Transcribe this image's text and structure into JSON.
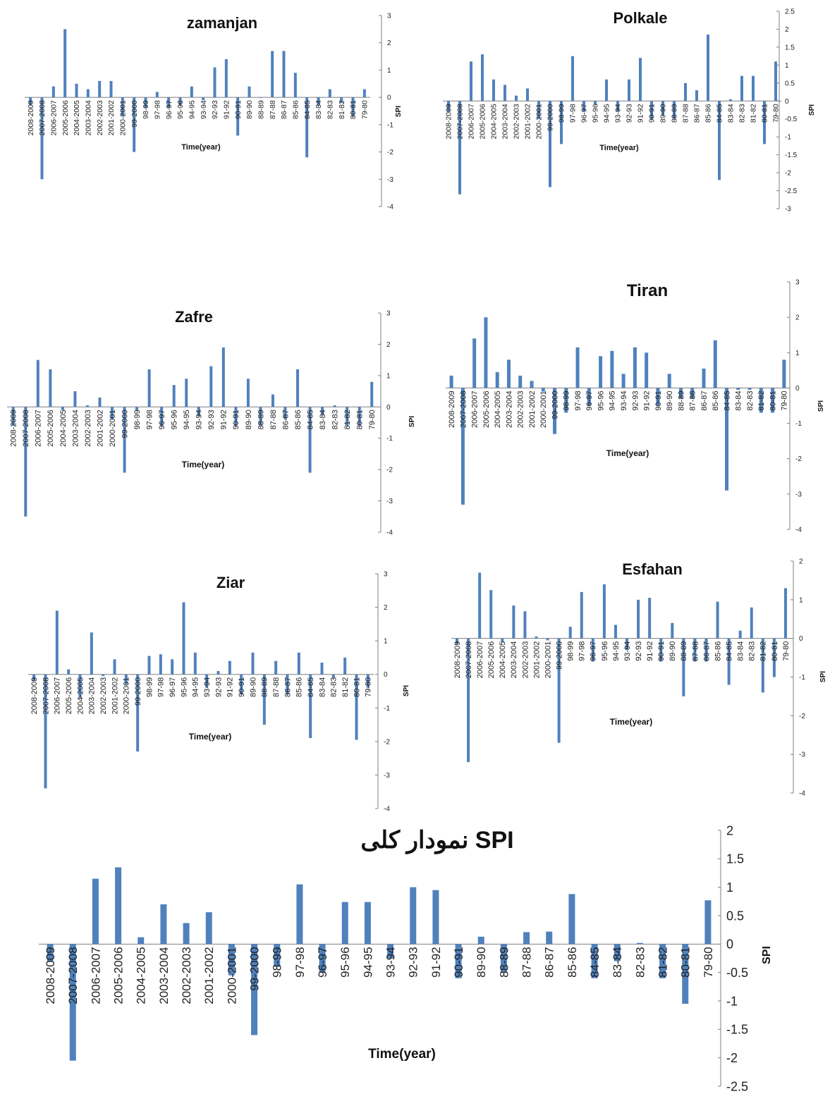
{
  "colors": {
    "bar": "#4F81BD",
    "axis": "#7f7f7f",
    "text": "#222222"
  },
  "chart_data": [
    {
      "type": "bar",
      "title": "zamanjan",
      "xlabel": "Time(year)",
      "ylabel": "SPI",
      "ylim": [
        -4,
        3
      ],
      "yticks": [
        "3",
        "2",
        "1",
        "0",
        "-1",
        "-2",
        "-3",
        "-4"
      ],
      "categories": [
        "2008-2009",
        "2007-2008",
        "2006-2007",
        "2005-2006",
        "2004-2005",
        "2003-2004",
        "2002-2003",
        "2001-2002",
        "2000-2001",
        "99-2000",
        "98-99",
        "97-98",
        "96-97",
        "95-96",
        "94-95",
        "93-94",
        "92-93",
        "91-92",
        "90-91",
        "89-90",
        "88-89",
        "87-88",
        "86-87",
        "85-86",
        "84-85",
        "83-84",
        "82-83",
        "81-82",
        "80-81",
        "79-80"
      ],
      "values": [
        -0.3,
        -3.0,
        0.4,
        2.5,
        0.5,
        0.3,
        0.6,
        0.6,
        -0.7,
        -2.0,
        -0.4,
        0.2,
        -0.4,
        -0.3,
        0.4,
        -0.1,
        1.1,
        1.4,
        -1.4,
        0.4,
        0.0,
        1.7,
        1.7,
        0.9,
        -2.2,
        -0.3,
        0.3,
        -0.2,
        -0.7,
        0.3
      ]
    },
    {
      "type": "bar",
      "title": "Polkale",
      "xlabel": "Time(year)",
      "ylabel": "SPI",
      "ylim": [
        -3,
        2.5
      ],
      "yticks": [
        "2.5",
        "2",
        "1.5",
        "1",
        "0.5",
        "0",
        "-0.5",
        "-1",
        "-1.5",
        "-2",
        "-2.5",
        "-3"
      ],
      "categories": [
        "2008-2009",
        "2007-2008",
        "2006-2007",
        "2005-2006",
        "2004-2005",
        "2003-2004",
        "2002-2003",
        "2001-2002",
        "2000-2001",
        "99-2000",
        "98-99",
        "97-98",
        "96-97",
        "95-96",
        "94-95",
        "93-94",
        "92-93",
        "91-92",
        "90-91",
        "89-90",
        "88-89",
        "87-88",
        "86-87",
        "85-86",
        "84-85",
        "83-84",
        "82-83",
        "81-82",
        "80-81",
        "79-80"
      ],
      "values": [
        -0.3,
        -2.6,
        1.1,
        1.3,
        0.6,
        0.45,
        0.15,
        0.35,
        -0.5,
        -2.4,
        -1.2,
        1.25,
        -0.3,
        -0.1,
        0.6,
        -0.3,
        0.6,
        1.2,
        -0.5,
        -0.4,
        -0.5,
        0.5,
        0.3,
        1.85,
        -2.2,
        0.05,
        0.7,
        0.7,
        -1.2,
        1.1
      ]
    },
    {
      "type": "bar",
      "title": "Zafre",
      "xlabel": "Time(year)",
      "ylabel": "SPI",
      "ylim": [
        -4,
        3
      ],
      "yticks": [
        "3",
        "2",
        "1",
        "0",
        "-1",
        "-2",
        "-3",
        "-4"
      ],
      "categories": [
        "2008-2009",
        "2007-2008",
        "2006-2007",
        "2005-2006",
        "2004-2005",
        "2003-2004",
        "2002-2003",
        "2001-2002",
        "2000-2001",
        "99-2000",
        "98-99",
        "97-98",
        "96-97",
        "95-96",
        "94-95",
        "93-94",
        "92-93",
        "91-92",
        "90-91",
        "89-90",
        "88-89",
        "87-88",
        "86-87",
        "85-86",
        "84-85",
        "83-84",
        "82-83",
        "81-82",
        "80-81",
        "79-80"
      ],
      "values": [
        -0.6,
        -3.5,
        1.5,
        1.2,
        -0.1,
        0.5,
        0.05,
        0.3,
        -0.4,
        -2.1,
        -0.1,
        1.2,
        -0.6,
        0.7,
        0.9,
        -0.3,
        1.3,
        1.9,
        -0.6,
        0.9,
        -0.6,
        0.4,
        -0.4,
        1.2,
        -2.1,
        -0.25,
        0.05,
        -0.6,
        -0.6,
        0.8
      ]
    },
    {
      "type": "bar",
      "title": "Tiran",
      "xlabel": "Time(year)",
      "ylabel": "SPI",
      "ylim": [
        -4,
        3
      ],
      "yticks": [
        "3",
        "2",
        "1",
        "0",
        "-1",
        "-2",
        "-3",
        "-4"
      ],
      "categories": [
        "2008-2009",
        "2007-2008",
        "2006-2007",
        "2005-2006",
        "2004-2005",
        "2003-2004",
        "2002-2003",
        "2001-2002",
        "2000-2001",
        "99-2000",
        "98-99",
        "97-98",
        "96-97",
        "95-96",
        "94-95",
        "93-94",
        "92-93",
        "91-92",
        "90-91",
        "89-90",
        "88-89",
        "87-88",
        "86-87",
        "85-86",
        "84-85",
        "83-84",
        "82-83",
        "81-82",
        "80-81",
        "79-80"
      ],
      "values": [
        0.35,
        -3.3,
        1.4,
        2.0,
        0.45,
        0.8,
        0.35,
        0.2,
        -0.1,
        -1.3,
        -0.7,
        1.15,
        -0.5,
        0.9,
        1.05,
        0.4,
        1.15,
        1.0,
        -0.5,
        0.4,
        -0.3,
        -0.3,
        0.55,
        1.35,
        -2.9,
        -0.05,
        -0.05,
        -0.7,
        -0.7,
        0.8
      ]
    },
    {
      "type": "bar",
      "title": "Ziar",
      "xlabel": "Time(year)",
      "ylabel": "SPI",
      "ylim": [
        -4,
        3
      ],
      "yticks": [
        "3",
        "2",
        "1",
        "0",
        "-1",
        "-2",
        "-3",
        "-4"
      ],
      "categories": [
        "2008-2009",
        "2007-2008",
        "2006-2007",
        "2005-2006",
        "2004-2005",
        "2003-2004",
        "2002-2003",
        "2001-2002",
        "2000-2001",
        "99-2000",
        "98-99",
        "97-98",
        "96-97",
        "95-96",
        "94-95",
        "93-94",
        "92-93",
        "91-92",
        "90-91",
        "89-90",
        "88-89",
        "87-88",
        "86-87",
        "85-86",
        "84-85",
        "83-84",
        "82-83",
        "81-82",
        "80-81",
        "79-80"
      ],
      "values": [
        -0.2,
        -3.4,
        1.9,
        0.15,
        -0.7,
        1.25,
        -0.05,
        0.45,
        -0.3,
        -2.3,
        0.55,
        0.6,
        0.45,
        2.15,
        0.65,
        -0.4,
        0.1,
        0.4,
        -0.6,
        0.65,
        -1.5,
        0.4,
        -0.6,
        0.65,
        -1.9,
        0.35,
        -0.1,
        0.5,
        -1.95,
        -0.4
      ]
    },
    {
      "type": "bar",
      "title": "Esfahan",
      "xlabel": "Time(year)",
      "ylabel": "SPI",
      "ylim": [
        -4,
        2
      ],
      "yticks": [
        "2",
        "1",
        "0",
        "-1",
        "-2",
        "-3",
        "-4"
      ],
      "categories": [
        "2008-2009",
        "2007-2008",
        "2006-2007",
        "2005-2006",
        "2004-2005",
        "2003-2004",
        "2002-2003",
        "2001-2002",
        "2000-2001",
        "99-2000",
        "98-99",
        "97-98",
        "96-97",
        "95-96",
        "94-95",
        "93-94",
        "92-93",
        "91-92",
        "90-91",
        "89-90",
        "88-89",
        "87-88",
        "86-87",
        "85-86",
        "84-85",
        "83-84",
        "82-83",
        "81-82",
        "80-81",
        "79-80"
      ],
      "values": [
        -0.15,
        -3.2,
        1.7,
        1.25,
        -0.1,
        0.85,
        0.7,
        0.05,
        -0.05,
        -2.7,
        0.3,
        1.2,
        -0.6,
        1.4,
        0.35,
        -0.3,
        1.0,
        1.05,
        -0.6,
        0.4,
        -1.5,
        -0.6,
        -0.6,
        0.95,
        -1.2,
        0.2,
        0.8,
        -1.4,
        -1.0,
        1.3
      ]
    },
    {
      "type": "bar",
      "title": "نمودار کلی SPI",
      "xlabel": "Time(year)",
      "ylabel": "SPI",
      "ylim": [
        -2.5,
        2
      ],
      "yticks": [
        "2",
        "1.5",
        "1",
        "0.5",
        "0",
        "-0.5",
        "-1",
        "-1.5",
        "-2",
        "-2.5"
      ],
      "categories": [
        "2008-2009",
        "2007-2008",
        "2006-2007",
        "2005-2006",
        "2004-2005",
        "2003-2004",
        "2002-2003",
        "2001-2002",
        "2000-2001",
        "99-2000",
        "98-99",
        "97-98",
        "96-97",
        "95-96",
        "94-95",
        "93-94",
        "92-93",
        "91-92",
        "90-91",
        "89-90",
        "88-89",
        "87-88",
        "86-87",
        "85-86",
        "84-85",
        "83-84",
        "82-83",
        "81-82",
        "80-81",
        "79-80"
      ],
      "values": [
        -0.3,
        -2.05,
        1.15,
        1.35,
        0.12,
        0.7,
        0.37,
        0.56,
        -0.55,
        -1.6,
        -0.4,
        1.05,
        -0.5,
        0.74,
        0.74,
        -0.25,
        1.0,
        0.95,
        -0.6,
        0.13,
        -0.5,
        0.21,
        0.22,
        0.88,
        -0.6,
        -0.3,
        0.02,
        -0.6,
        -1.05,
        0.77
      ]
    }
  ]
}
